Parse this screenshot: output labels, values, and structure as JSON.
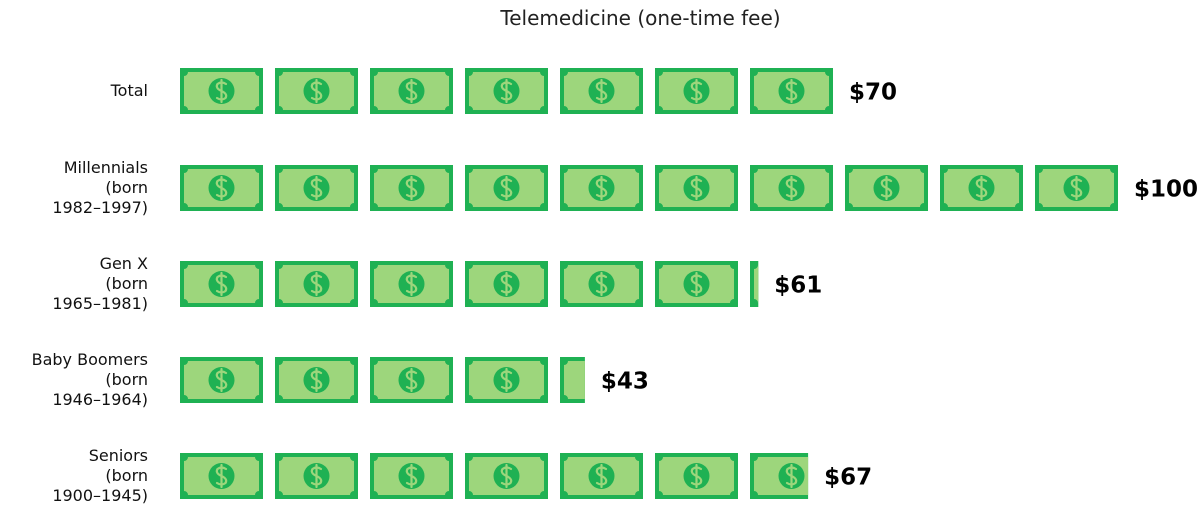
{
  "chart_data": {
    "type": "pictograph",
    "title": "Telemedicine (one-time fee)",
    "categories": [
      "Total",
      "Millennials\n(born\n1982–1997)",
      "Gen X\n(born\n1965–1981)",
      "Baby Boomers\n(born\n1946–1964)",
      "Seniors\n(born\n1900–1945)"
    ],
    "values": [
      70,
      100,
      61,
      43,
      67
    ],
    "value_labels": [
      "$70",
      "$100",
      "$61",
      "$43",
      "$67"
    ],
    "xlim": [
      0,
      100
    ],
    "color": "#1fb153"
  }
}
